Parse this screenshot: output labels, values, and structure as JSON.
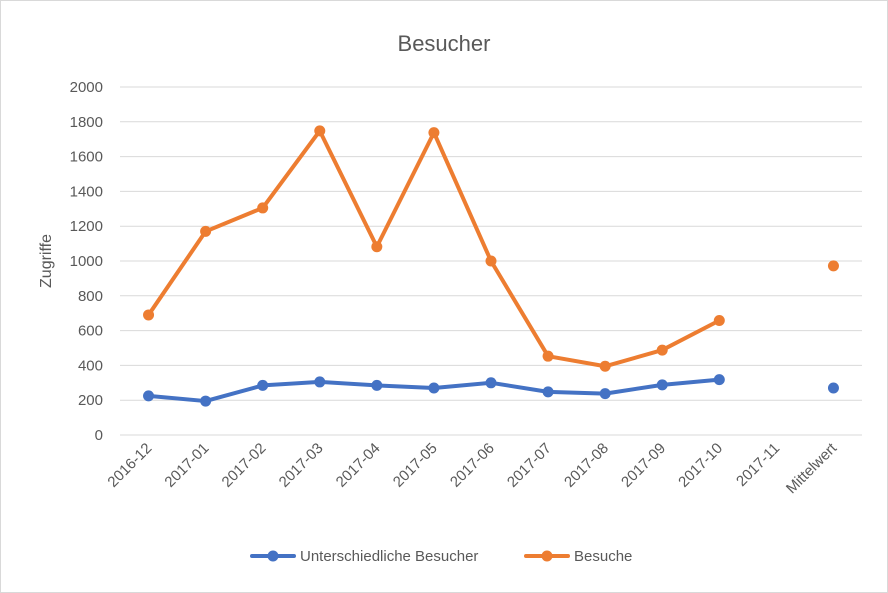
{
  "chart_data": {
    "type": "line",
    "title": "Besucher",
    "ylabel": "Zugriffe",
    "xlabel": "",
    "ylim": [
      0,
      2000
    ],
    "yticks": [
      0,
      200,
      400,
      600,
      800,
      1000,
      1200,
      1400,
      1600,
      1800,
      2000
    ],
    "grid": true,
    "legend_position": "bottom",
    "categories": [
      "2016-12",
      "2017-01",
      "2017-02",
      "2017-03",
      "2017-04",
      "2017-05",
      "2017-06",
      "2017-07",
      "2017-08",
      "2017-09",
      "2017-10",
      "2017-11",
      "Mittelwert"
    ],
    "series": [
      {
        "name": "Unterschiedliche Besucher",
        "color": "#4472c4",
        "values": [
          225,
          195,
          285,
          305,
          285,
          270,
          300,
          248,
          238,
          288,
          318,
          null,
          270
        ]
      },
      {
        "name": "Besuche",
        "color": "#ed7d31",
        "values": [
          690,
          1170,
          1305,
          1748,
          1082,
          1738,
          1000,
          453,
          395,
          488,
          658,
          null,
          972
        ]
      }
    ]
  }
}
